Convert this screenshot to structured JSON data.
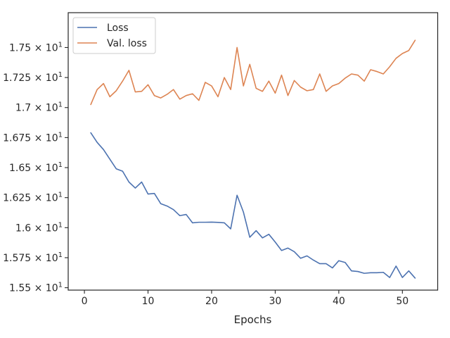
{
  "chart_data": {
    "type": "line",
    "xlabel": "Epochs",
    "ylabel": "",
    "xlim": [
      -2.55,
      55.55
    ],
    "ylim": [
      15.48,
      17.79
    ],
    "xticks": [
      0,
      10,
      20,
      30,
      40,
      50
    ],
    "xtick_labels": [
      "0",
      "10",
      "20",
      "30",
      "40",
      "50"
    ],
    "yticks": [
      15.5,
      15.75,
      16.0,
      16.25,
      16.5,
      16.75,
      17.0,
      17.25,
      17.5
    ],
    "ytick_labels": [
      {
        "mant": "1.55",
        "exp": "1"
      },
      {
        "mant": "1.575",
        "exp": "1"
      },
      {
        "mant": "1.6",
        "exp": "1"
      },
      {
        "mant": "1.625",
        "exp": "1"
      },
      {
        "mant": "1.65",
        "exp": "1"
      },
      {
        "mant": "1.675",
        "exp": "1"
      },
      {
        "mant": "1.7",
        "exp": "1"
      },
      {
        "mant": "1.725",
        "exp": "1"
      },
      {
        "mant": "1.75",
        "exp": "1"
      }
    ],
    "times_sign": "×",
    "base": "10",
    "legend_position": "top-left",
    "grid": false,
    "x": [
      1,
      2,
      3,
      4,
      5,
      6,
      7,
      8,
      9,
      10,
      11,
      12,
      13,
      14,
      15,
      16,
      17,
      18,
      19,
      20,
      21,
      22,
      23,
      24,
      25,
      26,
      27,
      28,
      29,
      30,
      31,
      32,
      33,
      34,
      35,
      36,
      37,
      38,
      39,
      40,
      41,
      42,
      43,
      44,
      45,
      46,
      47,
      48,
      49,
      50,
      51,
      52
    ],
    "series": [
      {
        "name": "Loss",
        "color": "#4c72b0",
        "values": [
          16.79,
          16.71,
          16.65,
          16.57,
          16.49,
          16.47,
          16.38,
          16.33,
          16.38,
          16.28,
          16.285,
          16.2,
          16.18,
          16.15,
          16.1,
          16.11,
          16.04,
          16.045,
          16.045,
          16.046,
          16.044,
          16.04,
          15.99,
          16.27,
          16.13,
          15.92,
          15.975,
          15.915,
          15.945,
          15.88,
          15.81,
          15.83,
          15.8,
          15.745,
          15.765,
          15.73,
          15.7,
          15.7,
          15.665,
          15.725,
          15.71,
          15.64,
          15.635,
          15.62,
          15.625,
          15.625,
          15.628,
          15.585,
          15.68,
          15.585,
          15.64,
          15.58
        ]
      },
      {
        "name": "Val. loss",
        "color": "#dd8452",
        "values": [
          17.025,
          17.15,
          17.2,
          17.09,
          17.14,
          17.22,
          17.31,
          17.13,
          17.135,
          17.19,
          17.1,
          17.08,
          17.11,
          17.15,
          17.07,
          17.1,
          17.115,
          17.06,
          17.21,
          17.18,
          17.09,
          17.25,
          17.15,
          17.5,
          17.18,
          17.36,
          17.16,
          17.135,
          17.22,
          17.12,
          17.27,
          17.1,
          17.225,
          17.17,
          17.14,
          17.15,
          17.28,
          17.135,
          17.18,
          17.2,
          17.245,
          17.28,
          17.27,
          17.22,
          17.315,
          17.3,
          17.28,
          17.34,
          17.41,
          17.45,
          17.475,
          17.56
        ]
      }
    ]
  }
}
